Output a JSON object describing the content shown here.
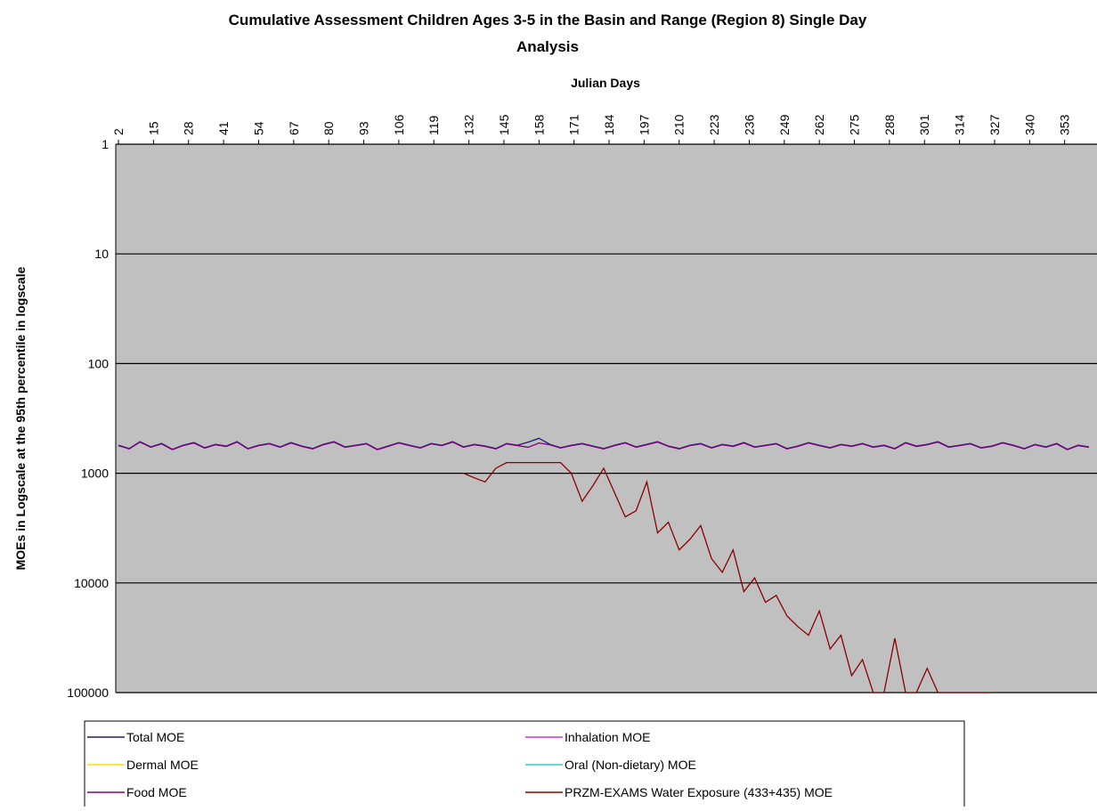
{
  "chart_data": {
    "type": "line",
    "title": "Cumulative Assessment Children Ages 3-5 in the Basin and Range (Region 8) Single Day",
    "title_line2": "Analysis",
    "x_label": "Julian Days",
    "y_label": "MOEs in Logscale at the 95th percentile in logscale",
    "log_scale": true,
    "y_reversed": true,
    "grid": true,
    "legend": "bottom",
    "background": "#c0c0c0",
    "xlim": [
      1,
      365
    ],
    "xticks": [
      2,
      15,
      28,
      41,
      54,
      67,
      80,
      93,
      106,
      119,
      132,
      145,
      158,
      171,
      184,
      197,
      210,
      223,
      236,
      249,
      262,
      275,
      288,
      301,
      314,
      327,
      340,
      353
    ],
    "ylim": [
      1,
      100000
    ],
    "yticks": [
      1,
      10,
      100,
      1000,
      10000,
      100000
    ],
    "x": [
      2,
      6,
      10,
      14,
      18,
      22,
      26,
      30,
      34,
      38,
      42,
      46,
      50,
      54,
      58,
      62,
      66,
      70,
      74,
      78,
      82,
      86,
      90,
      94,
      98,
      102,
      106,
      110,
      114,
      118,
      122,
      126,
      130,
      134,
      138,
      142,
      146,
      150,
      154,
      158,
      162,
      166,
      170,
      174,
      178,
      182,
      186,
      190,
      194,
      198,
      202,
      206,
      210,
      214,
      218,
      222,
      226,
      230,
      234,
      238,
      242,
      246,
      250,
      254,
      258,
      262,
      266,
      270,
      274,
      278,
      282,
      286,
      290,
      294,
      298,
      302,
      306,
      310,
      314,
      318,
      322,
      326,
      330,
      334,
      338,
      342,
      346,
      350,
      354,
      358,
      362
    ],
    "series": [
      {
        "name": "Total MOE",
        "color": "#1c1c78",
        "values": [
          555,
          595,
          515,
          575,
          535,
          605,
          555,
          525,
          585,
          545,
          565,
          515,
          595,
          555,
          535,
          575,
          525,
          565,
          595,
          545,
          515,
          575,
          555,
          535,
          605,
          565,
          525,
          555,
          585,
          535,
          555,
          515,
          575,
          545,
          565,
          595,
          535,
          555,
          520,
          480,
          545,
          585,
          555,
          535,
          565,
          595,
          555,
          525,
          575,
          545,
          515,
          565,
          595,
          555,
          535,
          585,
          545,
          565,
          525,
          575,
          555,
          535,
          595,
          565,
          525,
          555,
          585,
          545,
          565,
          535,
          575,
          555,
          595,
          525,
          565,
          545,
          515,
          575,
          555,
          535,
          585,
          565,
          525,
          555,
          595,
          545,
          575,
          535,
          605,
          555,
          575
        ]
      },
      {
        "name": "Inhalation MOE",
        "color": "#cc33cc",
        "values": [
          null,
          null,
          null,
          null,
          null,
          null,
          null,
          null,
          null,
          null,
          null,
          null,
          null,
          null,
          null,
          null,
          null,
          null,
          null,
          null,
          null,
          null,
          null,
          null,
          null,
          null,
          null,
          null,
          null,
          null,
          null,
          null,
          null,
          null,
          null,
          null,
          null,
          null,
          null,
          null,
          null,
          null,
          null,
          null,
          null,
          null,
          null,
          null,
          null,
          null,
          null,
          null,
          null,
          null,
          null,
          null,
          null,
          null,
          null,
          null,
          null,
          null,
          null,
          null,
          null,
          null,
          null,
          null,
          null,
          null,
          null,
          null,
          null,
          null,
          null,
          null,
          null,
          null,
          null,
          null,
          null,
          null,
          null,
          null,
          null,
          null,
          null,
          null,
          null,
          null,
          null
        ]
      },
      {
        "name": "Dermal MOE",
        "color": "#ffdd00",
        "values": [
          null,
          null,
          null,
          null,
          null,
          null,
          null,
          null,
          null,
          null,
          null,
          null,
          null,
          null,
          null,
          null,
          null,
          null,
          null,
          null,
          null,
          null,
          null,
          null,
          null,
          null,
          null,
          null,
          null,
          null,
          null,
          null,
          null,
          null,
          null,
          null,
          null,
          null,
          null,
          null,
          null,
          null,
          null,
          null,
          null,
          null,
          null,
          null,
          null,
          null,
          null,
          null,
          null,
          null,
          null,
          null,
          null,
          null,
          null,
          null,
          null,
          null,
          null,
          null,
          null,
          null,
          null,
          null,
          null,
          null,
          null,
          null,
          null,
          null,
          null,
          null,
          null,
          null,
          null,
          null,
          null,
          null,
          null,
          null,
          null,
          null,
          null,
          null,
          null,
          null,
          null
        ]
      },
      {
        "name": "Oral (Non-dietary) MOE",
        "color": "#33cccc",
        "values": [
          null,
          null,
          null,
          null,
          null,
          null,
          null,
          null,
          null,
          null,
          null,
          null,
          null,
          null,
          null,
          null,
          null,
          null,
          null,
          null,
          null,
          null,
          null,
          null,
          null,
          null,
          null,
          null,
          null,
          null,
          null,
          null,
          null,
          null,
          null,
          null,
          null,
          null,
          null,
          null,
          null,
          null,
          null,
          null,
          null,
          null,
          null,
          null,
          null,
          null,
          null,
          null,
          null,
          null,
          null,
          null,
          null,
          null,
          null,
          null,
          null,
          null,
          null,
          null,
          null,
          null,
          null,
          null,
          null,
          null,
          null,
          null,
          null,
          null,
          null,
          null,
          null,
          null,
          null,
          null,
          null,
          null,
          null,
          null,
          null,
          null,
          null,
          null,
          null,
          null,
          null
        ]
      },
      {
        "name": "Food MOE",
        "color": "#800080",
        "values": [
          560,
          600,
          520,
          580,
          540,
          610,
          560,
          530,
          590,
          550,
          570,
          520,
          600,
          560,
          540,
          580,
          530,
          570,
          600,
          550,
          520,
          580,
          560,
          540,
          610,
          570,
          530,
          560,
          590,
          540,
          560,
          520,
          580,
          550,
          570,
          600,
          540,
          560,
          580,
          530,
          550,
          590,
          560,
          540,
          570,
          600,
          560,
          530,
          580,
          550,
          520,
          570,
          600,
          560,
          540,
          590,
          550,
          570,
          530,
          580,
          560,
          540,
          600,
          570,
          530,
          560,
          590,
          550,
          570,
          540,
          580,
          560,
          600,
          530,
          570,
          550,
          520,
          580,
          560,
          540,
          590,
          570,
          530,
          560,
          600,
          550,
          580,
          540,
          610,
          560,
          580
        ]
      },
      {
        "name": "PRZM-EXAMS Water Exposure (433+435) MOE",
        "color": "#8b0000",
        "values": [
          null,
          null,
          null,
          null,
          null,
          null,
          null,
          null,
          null,
          null,
          null,
          null,
          null,
          null,
          null,
          null,
          null,
          null,
          null,
          null,
          null,
          null,
          null,
          null,
          null,
          null,
          null,
          null,
          null,
          null,
          null,
          null,
          1000,
          1100,
          1200,
          900,
          800,
          800,
          800,
          800,
          800,
          800,
          1000,
          1800,
          1300,
          900,
          1500,
          2500,
          2200,
          1200,
          3500,
          2800,
          5000,
          4000,
          3000,
          6000,
          8000,
          5000,
          12000,
          9000,
          15000,
          13000,
          20000,
          25000,
          30000,
          18000,
          40000,
          30000,
          70000,
          50000,
          100000,
          100000,
          32000,
          100000,
          100000,
          60000,
          100000,
          100000,
          100000,
          100000,
          100000,
          100000,
          null,
          null,
          null,
          null,
          null,
          null,
          null,
          null,
          null
        ]
      }
    ]
  }
}
